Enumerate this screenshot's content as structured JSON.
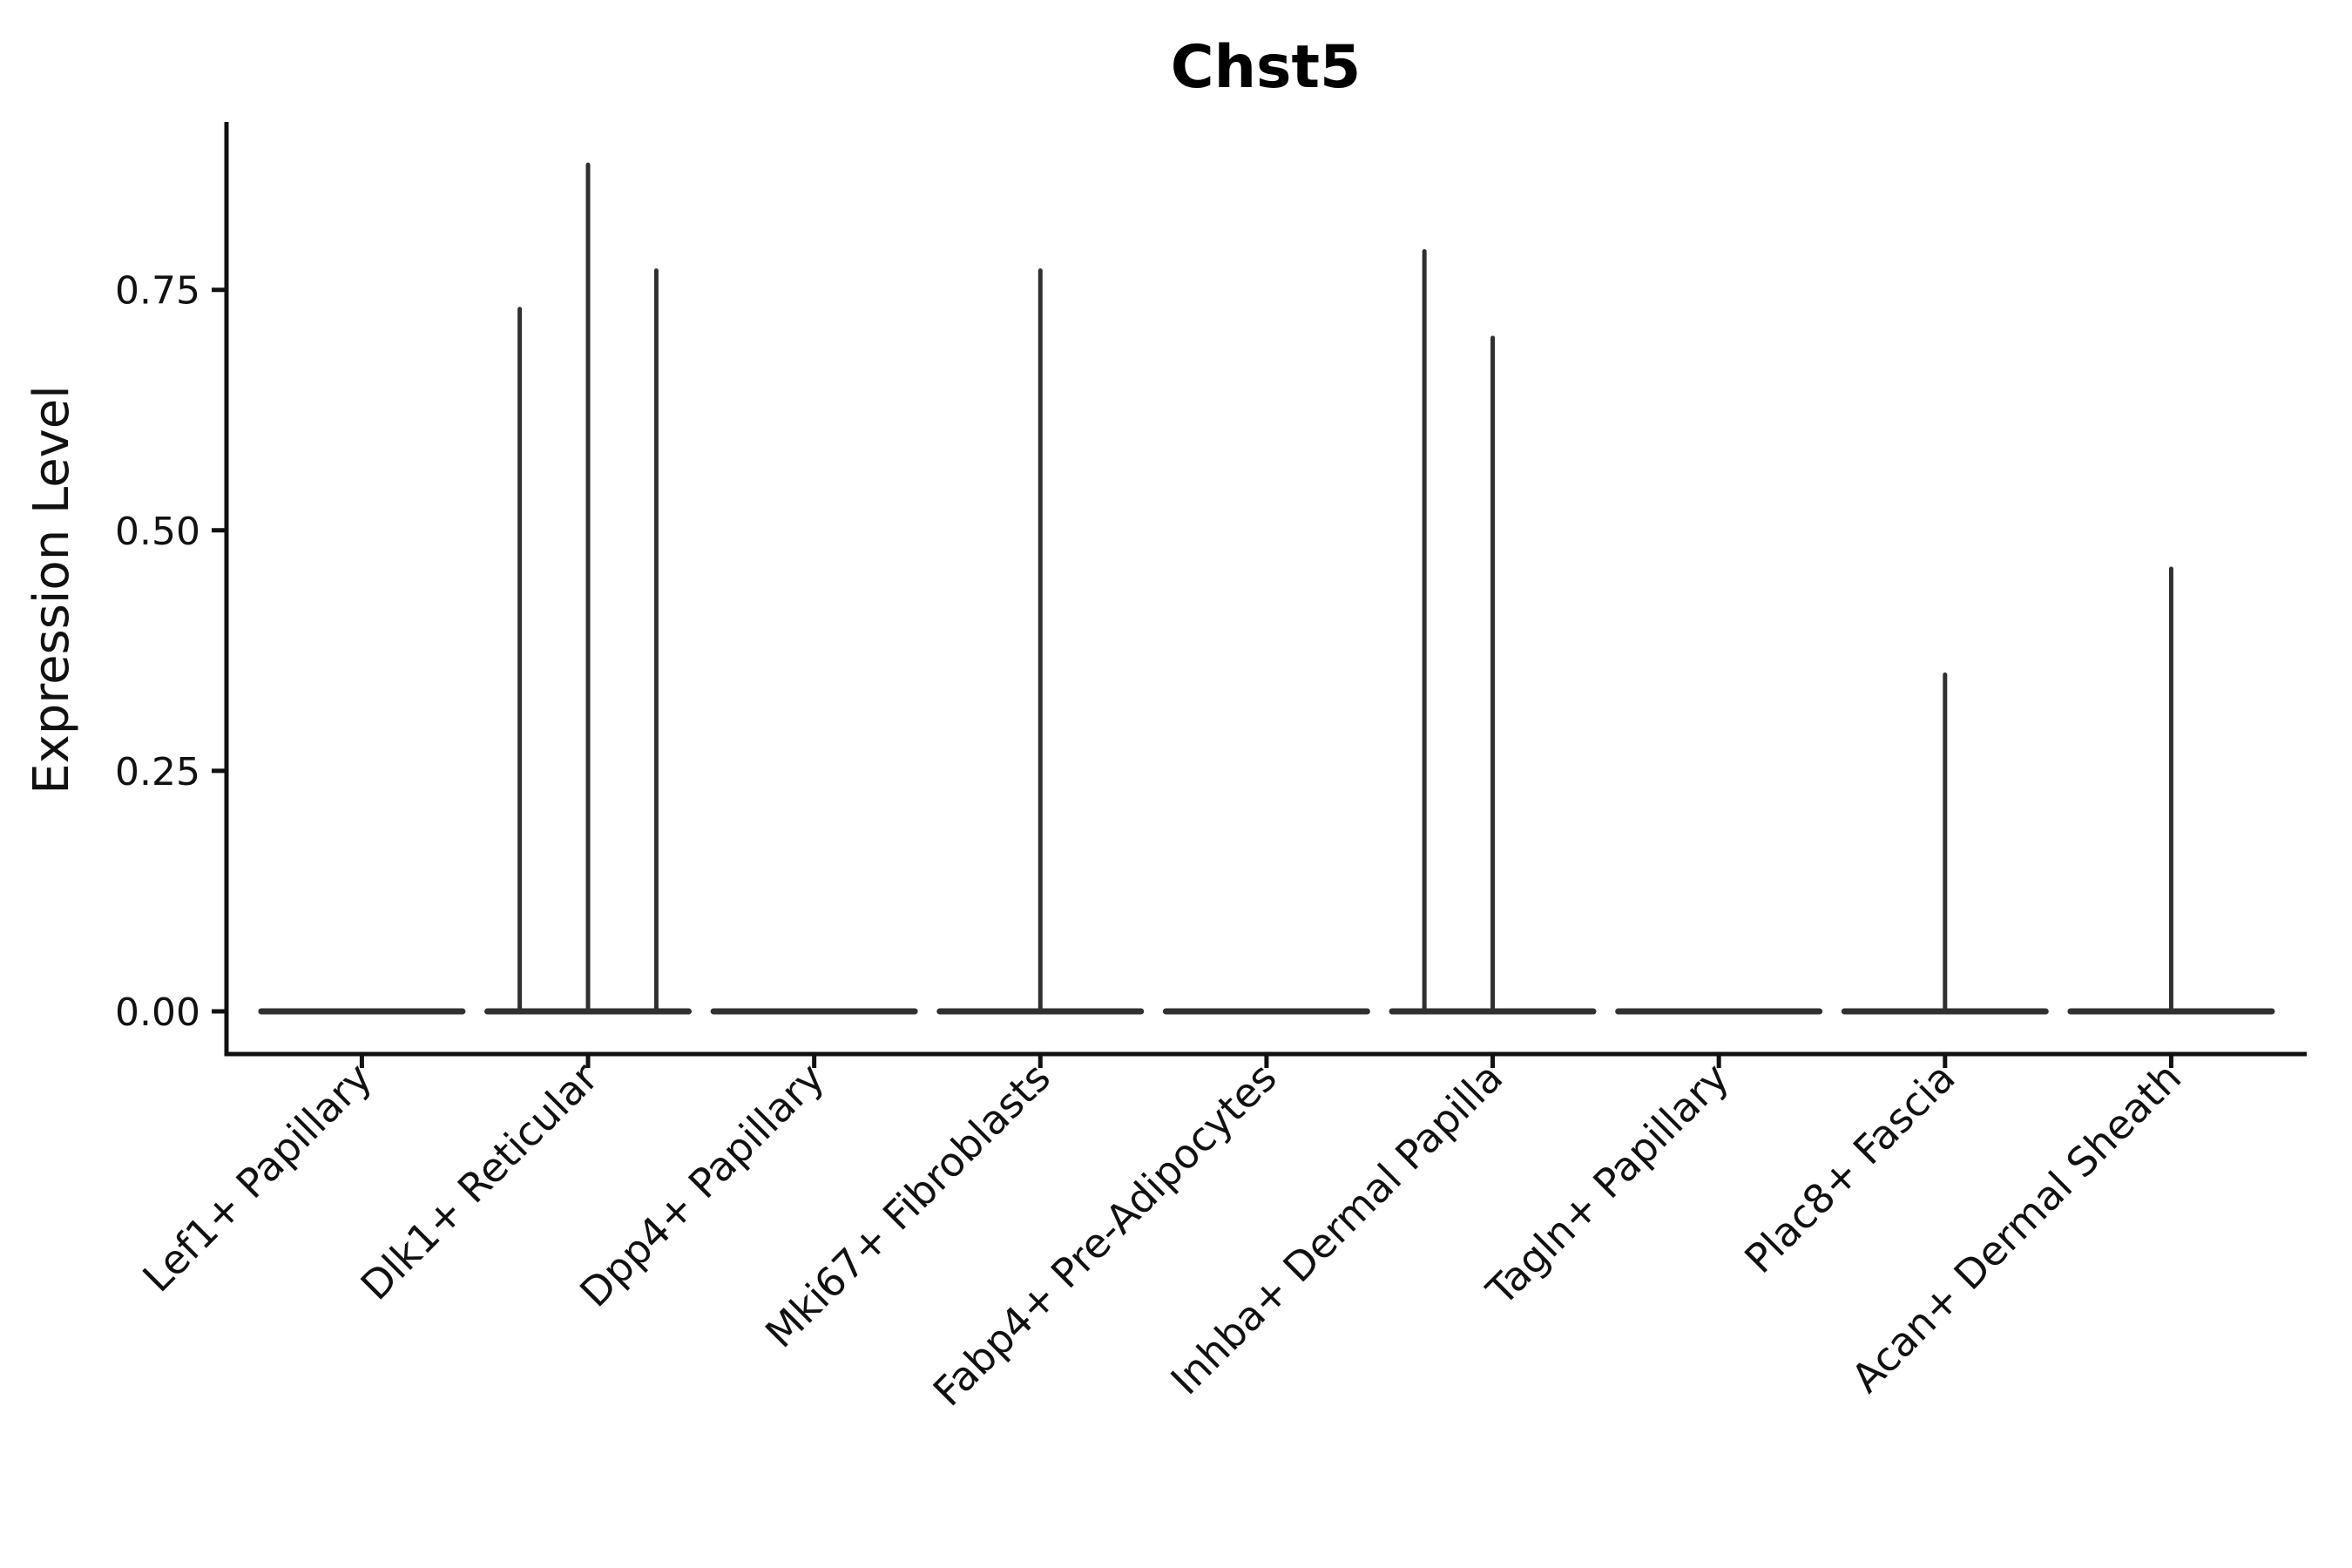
{
  "chart_data": {
    "type": "violin",
    "title": "Chst5",
    "ylabel": "Expression Level",
    "xlabel": "",
    "legend": "none",
    "grid": false,
    "background_color": "#ffffff",
    "violin_color": "#303030",
    "axis_color": "#111111",
    "ylim": [
      -0.044,
      0.922
    ],
    "ytick_labels": [
      "0.00",
      "0.25",
      "0.50",
      "0.75"
    ],
    "ytick_values": [
      0.0,
      0.25,
      0.5,
      0.75
    ],
    "categories": [
      "Lef1+ Papillary",
      "Dlk1+ Reticular",
      "Dpp4+ Papillary",
      "Mki67+ Fibroblasts",
      "Fabp4+ Pre-Adipocytes",
      "Inhba+ Dermal Papilla",
      "Tagln+ Papillary",
      "Plac8+ Fascia",
      "Acan+ Dermal Sheath"
    ],
    "violins": [
      {
        "category": "Lef1+ Papillary",
        "baseline_value": 0.0,
        "spikes": []
      },
      {
        "category": "Dlk1+ Reticular",
        "baseline_value": 0.0,
        "spikes": [
          {
            "position": "left",
            "value": 0.73
          },
          {
            "position": "center",
            "value": 0.88
          },
          {
            "position": "right",
            "value": 0.77
          }
        ]
      },
      {
        "category": "Dpp4+ Papillary",
        "baseline_value": 0.0,
        "spikes": []
      },
      {
        "category": "Mki67+ Fibroblasts",
        "baseline_value": 0.0,
        "spikes": [
          {
            "position": "center",
            "value": 0.77
          }
        ]
      },
      {
        "category": "Fabp4+ Pre-Adipocytes",
        "baseline_value": 0.0,
        "spikes": []
      },
      {
        "category": "Inhba+ Dermal Papilla",
        "baseline_value": 0.0,
        "spikes": [
          {
            "position": "left",
            "value": 0.79
          },
          {
            "position": "center",
            "value": 0.7
          }
        ]
      },
      {
        "category": "Tagln+ Papillary",
        "baseline_value": 0.0,
        "spikes": []
      },
      {
        "category": "Plac8+ Fascia",
        "baseline_value": 0.0,
        "spikes": [
          {
            "position": "center",
            "value": 0.35
          }
        ]
      },
      {
        "category": "Acan+ Dermal Sheath",
        "baseline_value": 0.0,
        "spikes": [
          {
            "position": "center",
            "value": 0.46
          }
        ]
      }
    ]
  }
}
